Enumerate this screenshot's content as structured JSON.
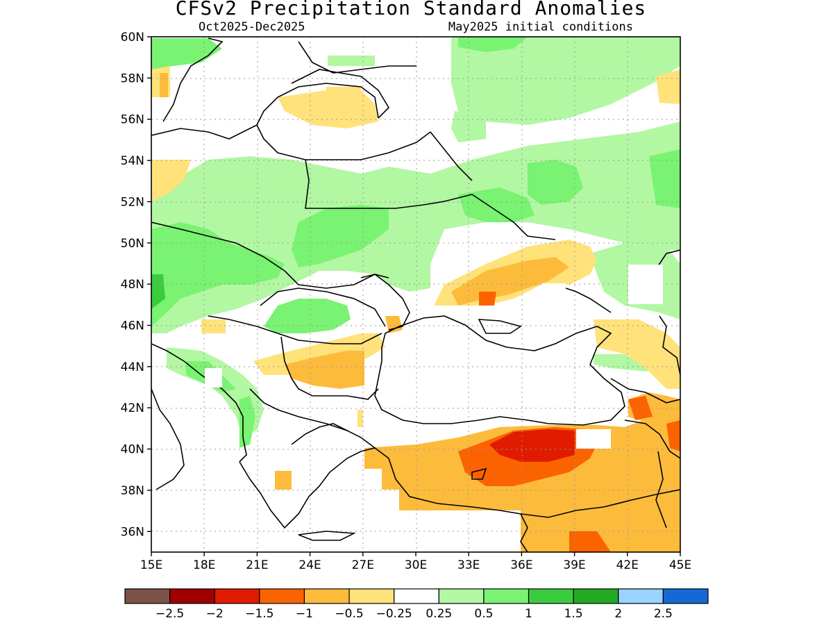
{
  "title": "CFSv2 Precipitation Standard Anomalies",
  "subtitle_left": "Oct2025-Dec2025",
  "subtitle_right": "May2025 initial conditions",
  "map": {
    "lon_range": [
      15,
      45
    ],
    "lat_range": [
      35,
      60
    ],
    "lon_labels": [
      "15E",
      "18E",
      "21E",
      "24E",
      "27E",
      "30E",
      "33E",
      "36E",
      "39E",
      "42E",
      "45E"
    ],
    "lat_labels": [
      "36N",
      "38N",
      "40N",
      "42N",
      "44N",
      "46N",
      "48N",
      "50N",
      "52N",
      "54N",
      "56N",
      "58N",
      "60N"
    ],
    "gridlines": "dotted"
  },
  "colorbar": {
    "colors": [
      "#7b5246",
      "#a00000",
      "#e11b00",
      "#fb6300",
      "#fdbb3c",
      "#ffe27a",
      "#ffffff",
      "#b2f7a2",
      "#7af272",
      "#3acc3c",
      "#22aa22",
      "#99d3ff",
      "#1568d6"
    ],
    "labels": [
      "-2.5",
      "-2",
      "-1.5",
      "-1",
      "-0.5",
      "-0.25",
      "0.25",
      "0.5",
      "1",
      "1.5",
      "2",
      "2.5"
    ]
  },
  "anomaly_regions": [
    {
      "level": "positive-1",
      "color": "#7af272",
      "desc": "Northern Balkans/Hungary"
    },
    {
      "level": "positive-0.5",
      "color": "#b2f7a2",
      "desc": "Poland, Belarus, western Russia band"
    },
    {
      "level": "negative-0.5",
      "color": "#fdbb3c",
      "desc": "Ukraine south coast, Bulgaria"
    },
    {
      "level": "negative-1",
      "color": "#fb6300",
      "desc": "Central Turkey"
    },
    {
      "level": "negative-1.5",
      "color": "#e11b00",
      "desc": "Central Anatolia core"
    }
  ]
}
